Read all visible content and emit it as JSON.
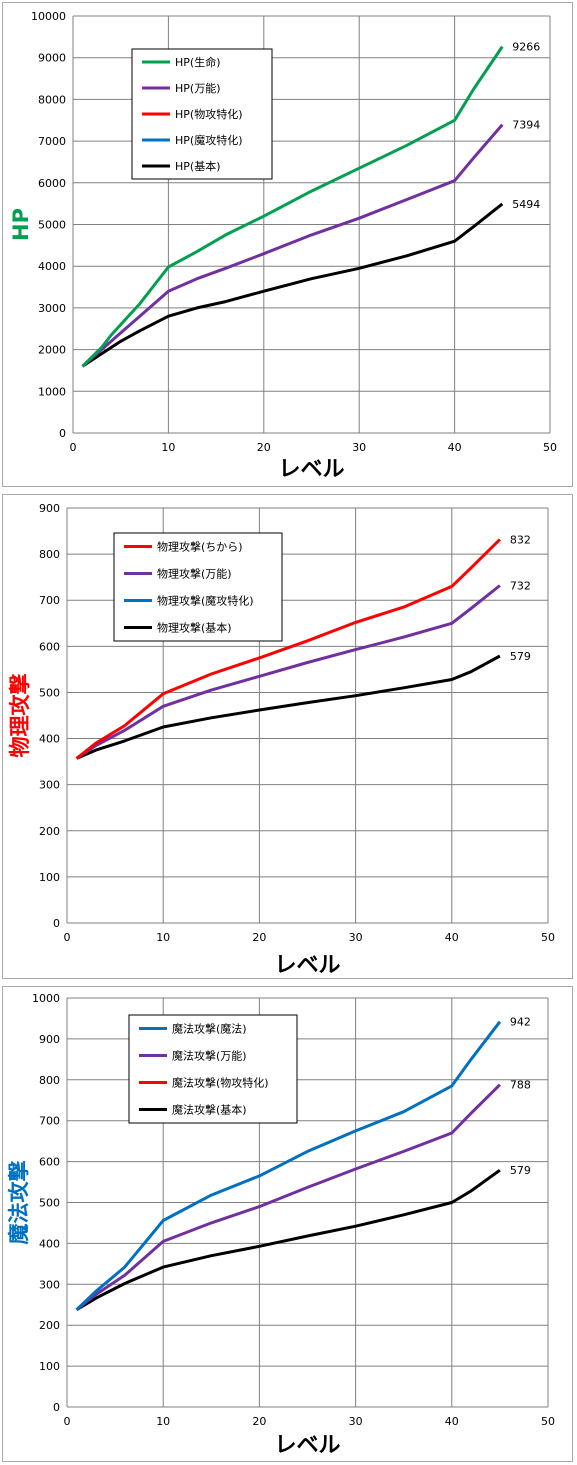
{
  "chart_data": [
    {
      "type": "line",
      "ylabel": "HP",
      "ylabel_color": "#00a050",
      "xlabel": "レベル",
      "xlim": [
        0,
        50
      ],
      "ylim": [
        0,
        10000
      ],
      "xticks": [
        0,
        10,
        20,
        30,
        40,
        50
      ],
      "yticks": [
        0,
        1000,
        2000,
        3000,
        4000,
        5000,
        6000,
        7000,
        8000,
        9000,
        10000
      ],
      "grid": true,
      "legend_position": "top-left",
      "series": [
        {
          "name": "HP(生命)",
          "color": "#00a050",
          "end_label": "9266",
          "x": [
            1,
            3,
            4,
            5,
            7,
            10,
            13,
            16,
            20,
            25,
            30,
            35,
            40,
            42,
            45
          ],
          "y": [
            1600,
            2050,
            2350,
            2600,
            3100,
            3980,
            4350,
            4750,
            5200,
            5800,
            6350,
            6900,
            7500,
            8250,
            9266
          ]
        },
        {
          "name": "HP(万能)",
          "color": "#7030a0",
          "end_label": "7394",
          "x": [
            1,
            3,
            5,
            7,
            10,
            13,
            16,
            20,
            25,
            30,
            35,
            40,
            42,
            45
          ],
          "y": [
            1600,
            2000,
            2400,
            2800,
            3400,
            3700,
            3950,
            4300,
            4750,
            5150,
            5600,
            6050,
            6600,
            7394
          ]
        },
        {
          "name": "HP(物攻特化)",
          "color": "#ff0000",
          "end_label": "",
          "x": [],
          "y": []
        },
        {
          "name": "HP(魔攻特化)",
          "color": "#0070c0",
          "end_label": "",
          "x": [],
          "y": []
        },
        {
          "name": "HP(基本)",
          "color": "#000000",
          "end_label": "5494",
          "x": [
            1,
            3,
            5,
            7,
            10,
            13,
            16,
            20,
            25,
            30,
            35,
            40,
            42,
            45
          ],
          "y": [
            1600,
            1900,
            2200,
            2450,
            2800,
            3000,
            3150,
            3400,
            3700,
            3950,
            4250,
            4600,
            4950,
            5494
          ]
        }
      ]
    },
    {
      "type": "line",
      "ylabel": "物理攻撃",
      "ylabel_color": "#ff0000",
      "xlabel": "レベル",
      "xlim": [
        0,
        50
      ],
      "ylim": [
        0,
        900
      ],
      "xticks": [
        0,
        10,
        20,
        30,
        40,
        50
      ],
      "yticks": [
        0,
        100,
        200,
        300,
        400,
        500,
        600,
        700,
        800,
        900
      ],
      "grid": true,
      "legend_position": "top-left",
      "series": [
        {
          "name": "物理攻撃(ちから)",
          "color": "#ff0000",
          "end_label": "832",
          "x": [
            1,
            3,
            6,
            10,
            15,
            20,
            25,
            30,
            35,
            40,
            42,
            45
          ],
          "y": [
            357,
            390,
            428,
            497,
            540,
            575,
            612,
            652,
            685,
            730,
            770,
            832
          ]
        },
        {
          "name": "物理攻撃(万能)",
          "color": "#7030a0",
          "end_label": "732",
          "x": [
            1,
            3,
            6,
            10,
            15,
            20,
            25,
            30,
            35,
            40,
            42,
            45
          ],
          "y": [
            357,
            385,
            418,
            470,
            505,
            535,
            565,
            593,
            620,
            650,
            682,
            732
          ]
        },
        {
          "name": "物理攻撃(魔攻特化)",
          "color": "#0070c0",
          "end_label": "",
          "x": [],
          "y": []
        },
        {
          "name": "物理攻撃(基本)",
          "color": "#000000",
          "end_label": "579",
          "x": [
            1,
            3,
            6,
            10,
            15,
            20,
            25,
            30,
            35,
            40,
            42,
            45
          ],
          "y": [
            357,
            375,
            395,
            425,
            445,
            462,
            478,
            493,
            510,
            528,
            545,
            579
          ]
        }
      ]
    },
    {
      "type": "line",
      "ylabel": "魔法攻撃",
      "ylabel_color": "#0070c0",
      "xlabel": "レベル",
      "xlim": [
        0,
        50
      ],
      "ylim": [
        0,
        1000
      ],
      "xticks": [
        0,
        10,
        20,
        30,
        40,
        50
      ],
      "yticks": [
        0,
        100,
        200,
        300,
        400,
        500,
        600,
        700,
        800,
        900,
        1000
      ],
      "grid": true,
      "legend_position": "top-left",
      "series": [
        {
          "name": "魔法攻撃(魔法)",
          "color": "#0070c0",
          "end_label": "942",
          "x": [
            1,
            3,
            6,
            10,
            15,
            20,
            25,
            30,
            35,
            40,
            42,
            45
          ],
          "y": [
            238,
            283,
            342,
            456,
            518,
            565,
            625,
            675,
            722,
            785,
            850,
            942
          ]
        },
        {
          "name": "魔法攻撃(万能)",
          "color": "#7030a0",
          "end_label": "788",
          "x": [
            1,
            3,
            6,
            10,
            15,
            20,
            25,
            30,
            35,
            40,
            42,
            45
          ],
          "y": [
            238,
            275,
            322,
            405,
            450,
            490,
            537,
            582,
            625,
            670,
            718,
            788
          ]
        },
        {
          "name": "魔法攻撃(物攻特化)",
          "color": "#ff0000",
          "end_label": "",
          "x": [],
          "y": []
        },
        {
          "name": "魔法攻撃(基本)",
          "color": "#000000",
          "end_label": "579",
          "x": [
            1,
            3,
            6,
            10,
            15,
            20,
            25,
            30,
            35,
            40,
            42,
            45
          ],
          "y": [
            238,
            266,
            302,
            342,
            370,
            393,
            418,
            442,
            470,
            500,
            528,
            579
          ]
        }
      ]
    }
  ]
}
